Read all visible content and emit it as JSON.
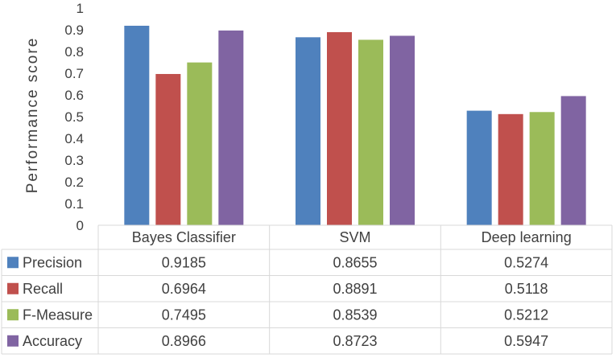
{
  "chart_data": {
    "type": "bar",
    "title": "",
    "xlabel": "",
    "ylabel": "Performance score",
    "ylim": [
      0,
      1
    ],
    "yticks": [
      "0",
      "0.1",
      "0.2",
      "0.3",
      "0.4",
      "0.5",
      "0.6",
      "0.7",
      "0.8",
      "0.9",
      "1"
    ],
    "grid": false,
    "legend": "data-table",
    "categories": [
      "Bayes Classifier",
      "SVM",
      "Deep learning"
    ],
    "series": [
      {
        "name": "Precision",
        "color": "#4f81bd",
        "values": [
          0.9185,
          0.8655,
          0.5274
        ],
        "labels": [
          "0.9185",
          "0.8655",
          "0.5274"
        ]
      },
      {
        "name": "Recall",
        "color": "#c0504d",
        "values": [
          0.6964,
          0.8891,
          0.5118
        ],
        "labels": [
          "0.6964",
          "0.8891",
          "0.5118"
        ]
      },
      {
        "name": "F-Measure",
        "color": "#9bbb59",
        "values": [
          0.7495,
          0.8539,
          0.5212
        ],
        "labels": [
          "0.7495",
          "0.8539",
          "0.5212"
        ]
      },
      {
        "name": "Accuracy",
        "color": "#8064a2",
        "values": [
          0.8966,
          0.8723,
          0.5947
        ],
        "labels": [
          "0.8966",
          "0.8723",
          "0.5947"
        ]
      }
    ]
  }
}
